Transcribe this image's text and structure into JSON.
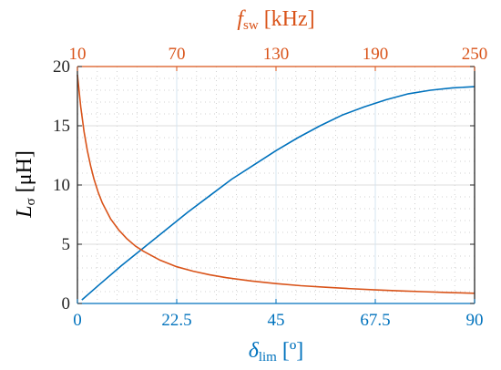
{
  "colors": {
    "blue": "#0072BD",
    "orange": "#D95319",
    "axis_black": "#262626",
    "grid": "#dcdcdc"
  },
  "chart_data": {
    "type": "line",
    "grid": true,
    "minor_grid": true,
    "y_axis": {
      "label_main": "L",
      "label_sub": "σ",
      "label_unit": " [μH]",
      "range": [
        0,
        20
      ],
      "ticks": [
        0,
        5,
        10,
        15,
        20
      ],
      "tick_labels": [
        "0",
        "5",
        "10",
        "15",
        "20"
      ]
    },
    "x_bottom": {
      "label_main": "δ",
      "label_sub": "lim",
      "label_unit": " [º]",
      "range": [
        0,
        90
      ],
      "ticks": [
        0,
        22.5,
        45,
        67.5,
        90
      ],
      "tick_labels": [
        "0",
        "22.5",
        "45",
        "67.5",
        "90"
      ]
    },
    "x_top": {
      "label_main": "f",
      "label_sub": "sw",
      "label_unit": " [kHz]",
      "range": [
        10,
        250
      ],
      "ticks": [
        10,
        70,
        130,
        190,
        250
      ],
      "tick_labels": [
        "10",
        "70",
        "130",
        "190",
        "250"
      ]
    },
    "series": [
      {
        "axis": "bottom",
        "color": "blue",
        "x": [
          1,
          5,
          10,
          15,
          20,
          25,
          30,
          35,
          40,
          45,
          50,
          55,
          60,
          65,
          70,
          75,
          80,
          85,
          90
        ],
        "y": [
          0.3,
          1.6,
          3.2,
          4.7,
          6.2,
          7.7,
          9.1,
          10.5,
          11.7,
          12.9,
          14.0,
          15.0,
          15.9,
          16.6,
          17.2,
          17.7,
          18.0,
          18.2,
          18.3
        ]
      },
      {
        "axis": "top",
        "color": "orange",
        "x": [
          10,
          12,
          14,
          16,
          18,
          20,
          22.5,
          25,
          30,
          35,
          40,
          45,
          50,
          60,
          70,
          80,
          90,
          100,
          115,
          130,
          145,
          160,
          175,
          190,
          205,
          220,
          235,
          250
        ],
        "y": [
          19.3,
          16.6,
          14.5,
          12.9,
          11.6,
          10.5,
          9.4,
          8.5,
          7.15,
          6.2,
          5.45,
          4.85,
          4.4,
          3.65,
          3.1,
          2.72,
          2.42,
          2.18,
          1.9,
          1.68,
          1.5,
          1.37,
          1.25,
          1.15,
          1.06,
          0.99,
          0.92,
          0.86
        ]
      }
    ]
  }
}
